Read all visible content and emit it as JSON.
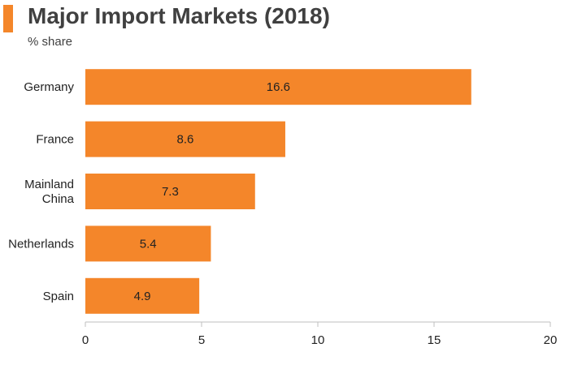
{
  "header": {
    "title": "Major Import Markets (2018)",
    "subtitle": "% share"
  },
  "colors": {
    "bar": "#f4862a",
    "title_marker": "#f4862a",
    "axis": "#bfbfbf"
  },
  "chart_data": {
    "type": "bar",
    "orientation": "horizontal",
    "title": "Major Import Markets (2018)",
    "subtitle": "% share",
    "xlabel": "",
    "ylabel": "",
    "categories": [
      [
        "Germany"
      ],
      [
        "France"
      ],
      [
        "Mainland",
        "China"
      ],
      [
        "Netherlands"
      ],
      [
        "Spain"
      ]
    ],
    "values": [
      16.6,
      8.6,
      7.3,
      5.4,
      4.9
    ],
    "data_labels": [
      "16.6",
      "8.6",
      "7.3",
      "5.4",
      "4.9"
    ],
    "xlim": [
      0,
      20
    ],
    "x_ticks": [
      0,
      5,
      10,
      15,
      20
    ],
    "grid": false,
    "legend": "none"
  }
}
